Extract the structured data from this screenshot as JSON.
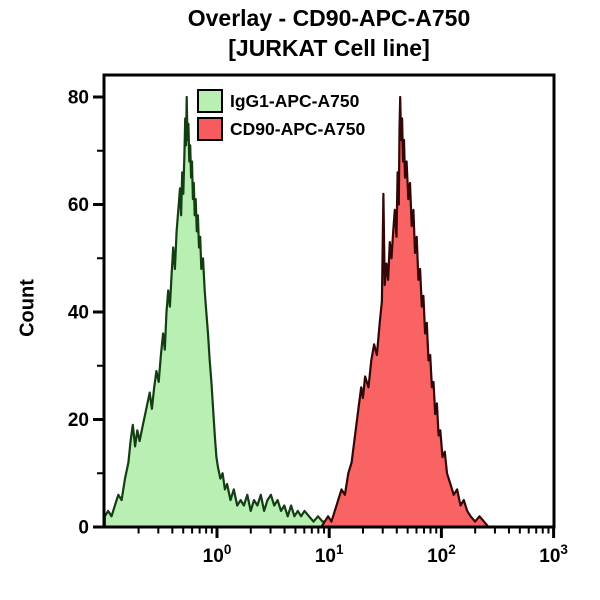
{
  "figure": {
    "title_line1": "Overlay - CD90-APC-A750",
    "title_line2": "[JURKAT Cell line]",
    "y_axis_label": "Count"
  },
  "legend": {
    "items": [
      {
        "label": "IgG1-APC-A750",
        "color": "#b9efb3"
      },
      {
        "label": "CD90-APC-A750",
        "color": "#f75a5f"
      }
    ]
  },
  "chart_data": {
    "type": "area",
    "subtype": "flow-cytometry-histogram-overlay",
    "title": "Overlay - CD90-APC-A750",
    "subtitle": "[JURKAT Cell line]",
    "xlabel": "",
    "ylabel": "Count",
    "x_scale": "log10",
    "x_range_log10": [
      -1,
      3
    ],
    "x_tick_exponents": [
      "0",
      "1",
      "2",
      "3"
    ],
    "x_tick_labels": [
      "10⁰",
      "10¹",
      "10²",
      "10³"
    ],
    "x_tick_base": "10",
    "ylim": [
      0,
      80
    ],
    "y_major_ticks": [
      0,
      20,
      40,
      60,
      80
    ],
    "y_tick_labels": [
      "0",
      "20",
      "40",
      "60",
      "80"
    ],
    "y_minor_ticks": [
      10,
      30,
      50,
      70
    ],
    "grid": false,
    "legend_position": "top-left-inside",
    "axis_color": "#000000",
    "series": [
      {
        "name": "IgG1-APC-A750",
        "id": "igg1",
        "fill": "#b9efb3",
        "stroke": "#133d13",
        "peak_log10x": -0.27,
        "peak_count": 80,
        "points_log10x_count": [
          [
            -1.0,
            2
          ],
          [
            -0.97,
            3
          ],
          [
            -0.94,
            2
          ],
          [
            -0.91,
            4
          ],
          [
            -0.88,
            6
          ],
          [
            -0.85,
            5
          ],
          [
            -0.82,
            9
          ],
          [
            -0.79,
            12
          ],
          [
            -0.77,
            16
          ],
          [
            -0.75,
            19
          ],
          [
            -0.73,
            15
          ],
          [
            -0.71,
            18
          ],
          [
            -0.69,
            16
          ],
          [
            -0.66,
            19
          ],
          [
            -0.63,
            22
          ],
          [
            -0.6,
            25
          ],
          [
            -0.58,
            22
          ],
          [
            -0.56,
            26
          ],
          [
            -0.54,
            29
          ],
          [
            -0.52,
            27
          ],
          [
            -0.5,
            32
          ],
          [
            -0.48,
            36
          ],
          [
            -0.465,
            33
          ],
          [
            -0.45,
            40
          ],
          [
            -0.435,
            44
          ],
          [
            -0.42,
            41
          ],
          [
            -0.405,
            47
          ],
          [
            -0.39,
            52
          ],
          [
            -0.375,
            48
          ],
          [
            -0.36,
            55
          ],
          [
            -0.345,
            59
          ],
          [
            -0.33,
            63
          ],
          [
            -0.32,
            58
          ],
          [
            -0.31,
            66
          ],
          [
            -0.3,
            62
          ],
          [
            -0.29,
            70
          ],
          [
            -0.283,
            76
          ],
          [
            -0.276,
            71
          ],
          [
            -0.27,
            80
          ],
          [
            -0.263,
            72
          ],
          [
            -0.255,
            75
          ],
          [
            -0.247,
            68
          ],
          [
            -0.239,
            71
          ],
          [
            -0.231,
            65
          ],
          [
            -0.223,
            68
          ],
          [
            -0.215,
            61
          ],
          [
            -0.207,
            64
          ],
          [
            -0.199,
            58
          ],
          [
            -0.19,
            61
          ],
          [
            -0.18,
            55
          ],
          [
            -0.17,
            58
          ],
          [
            -0.16,
            52
          ],
          [
            -0.15,
            54
          ],
          [
            -0.14,
            48
          ],
          [
            -0.125,
            50
          ],
          [
            -0.11,
            44
          ],
          [
            -0.095,
            40
          ],
          [
            -0.08,
            36
          ],
          [
            -0.065,
            31
          ],
          [
            -0.05,
            27
          ],
          [
            -0.035,
            22
          ],
          [
            -0.02,
            17
          ],
          [
            -0.005,
            13
          ],
          [
            0.01,
            11
          ],
          [
            0.03,
            9
          ],
          [
            0.05,
            10
          ],
          [
            0.07,
            7
          ],
          [
            0.09,
            8
          ],
          [
            0.12,
            5
          ],
          [
            0.15,
            7
          ],
          [
            0.18,
            4
          ],
          [
            0.21,
            5
          ],
          [
            0.24,
            4
          ],
          [
            0.27,
            6
          ],
          [
            0.3,
            3
          ],
          [
            0.33,
            5
          ],
          [
            0.36,
            4
          ],
          [
            0.39,
            6
          ],
          [
            0.42,
            3
          ],
          [
            0.45,
            5
          ],
          [
            0.48,
            6
          ],
          [
            0.51,
            4
          ],
          [
            0.54,
            5
          ],
          [
            0.57,
            3
          ],
          [
            0.6,
            4
          ],
          [
            0.63,
            2
          ],
          [
            0.66,
            4
          ],
          [
            0.69,
            2
          ],
          [
            0.72,
            3
          ],
          [
            0.75,
            2
          ],
          [
            0.78,
            3
          ],
          [
            0.82,
            2
          ],
          [
            0.86,
            1
          ],
          [
            0.9,
            2
          ],
          [
            0.94,
            1
          ],
          [
            0.98,
            1
          ],
          [
            1.02,
            0
          ]
        ]
      },
      {
        "name": "CD90-APC-A750",
        "id": "cd90",
        "fill": "#f96363",
        "stroke": "#330707",
        "peak_log10x": 1.633,
        "peak_count": 80,
        "points_log10x_count": [
          [
            0.93,
            0
          ],
          [
            0.96,
            1
          ],
          [
            0.99,
            2
          ],
          [
            1.02,
            1
          ],
          [
            1.05,
            3
          ],
          [
            1.08,
            5
          ],
          [
            1.11,
            7
          ],
          [
            1.14,
            6
          ],
          [
            1.17,
            10
          ],
          [
            1.2,
            12
          ],
          [
            1.23,
            17
          ],
          [
            1.26,
            22
          ],
          [
            1.285,
            26
          ],
          [
            1.3,
            24
          ],
          [
            1.32,
            28
          ],
          [
            1.35,
            26
          ],
          [
            1.375,
            31
          ],
          [
            1.4,
            34
          ],
          [
            1.425,
            32
          ],
          [
            1.45,
            38
          ],
          [
            1.47,
            42
          ],
          [
            1.483,
            62
          ],
          [
            1.495,
            45
          ],
          [
            1.51,
            49
          ],
          [
            1.525,
            46
          ],
          [
            1.54,
            53
          ],
          [
            1.555,
            50
          ],
          [
            1.57,
            55
          ],
          [
            1.585,
            59
          ],
          [
            1.6,
            54
          ],
          [
            1.61,
            66
          ],
          [
            1.62,
            60
          ],
          [
            1.627,
            74
          ],
          [
            1.633,
            80
          ],
          [
            1.641,
            72
          ],
          [
            1.65,
            76
          ],
          [
            1.658,
            68
          ],
          [
            1.667,
            72
          ],
          [
            1.676,
            65
          ],
          [
            1.69,
            68
          ],
          [
            1.705,
            61
          ],
          [
            1.72,
            64
          ],
          [
            1.735,
            56
          ],
          [
            1.75,
            59
          ],
          [
            1.765,
            51
          ],
          [
            1.78,
            54
          ],
          [
            1.795,
            46
          ],
          [
            1.81,
            48
          ],
          [
            1.825,
            41
          ],
          [
            1.84,
            43
          ],
          [
            1.855,
            36
          ],
          [
            1.87,
            38
          ],
          [
            1.885,
            31
          ],
          [
            1.9,
            32
          ],
          [
            1.915,
            26
          ],
          [
            1.93,
            27
          ],
          [
            1.945,
            21
          ],
          [
            1.96,
            23
          ],
          [
            1.975,
            17
          ],
          [
            1.99,
            18
          ],
          [
            2.01,
            13
          ],
          [
            2.03,
            14
          ],
          [
            2.05,
            10
          ],
          [
            2.08,
            8
          ],
          [
            2.11,
            6
          ],
          [
            2.14,
            7
          ],
          [
            2.17,
            4
          ],
          [
            2.2,
            5
          ],
          [
            2.23,
            3
          ],
          [
            2.26,
            2
          ],
          [
            2.3,
            1
          ],
          [
            2.34,
            2
          ],
          [
            2.38,
            1
          ],
          [
            2.42,
            0
          ]
        ]
      }
    ]
  }
}
